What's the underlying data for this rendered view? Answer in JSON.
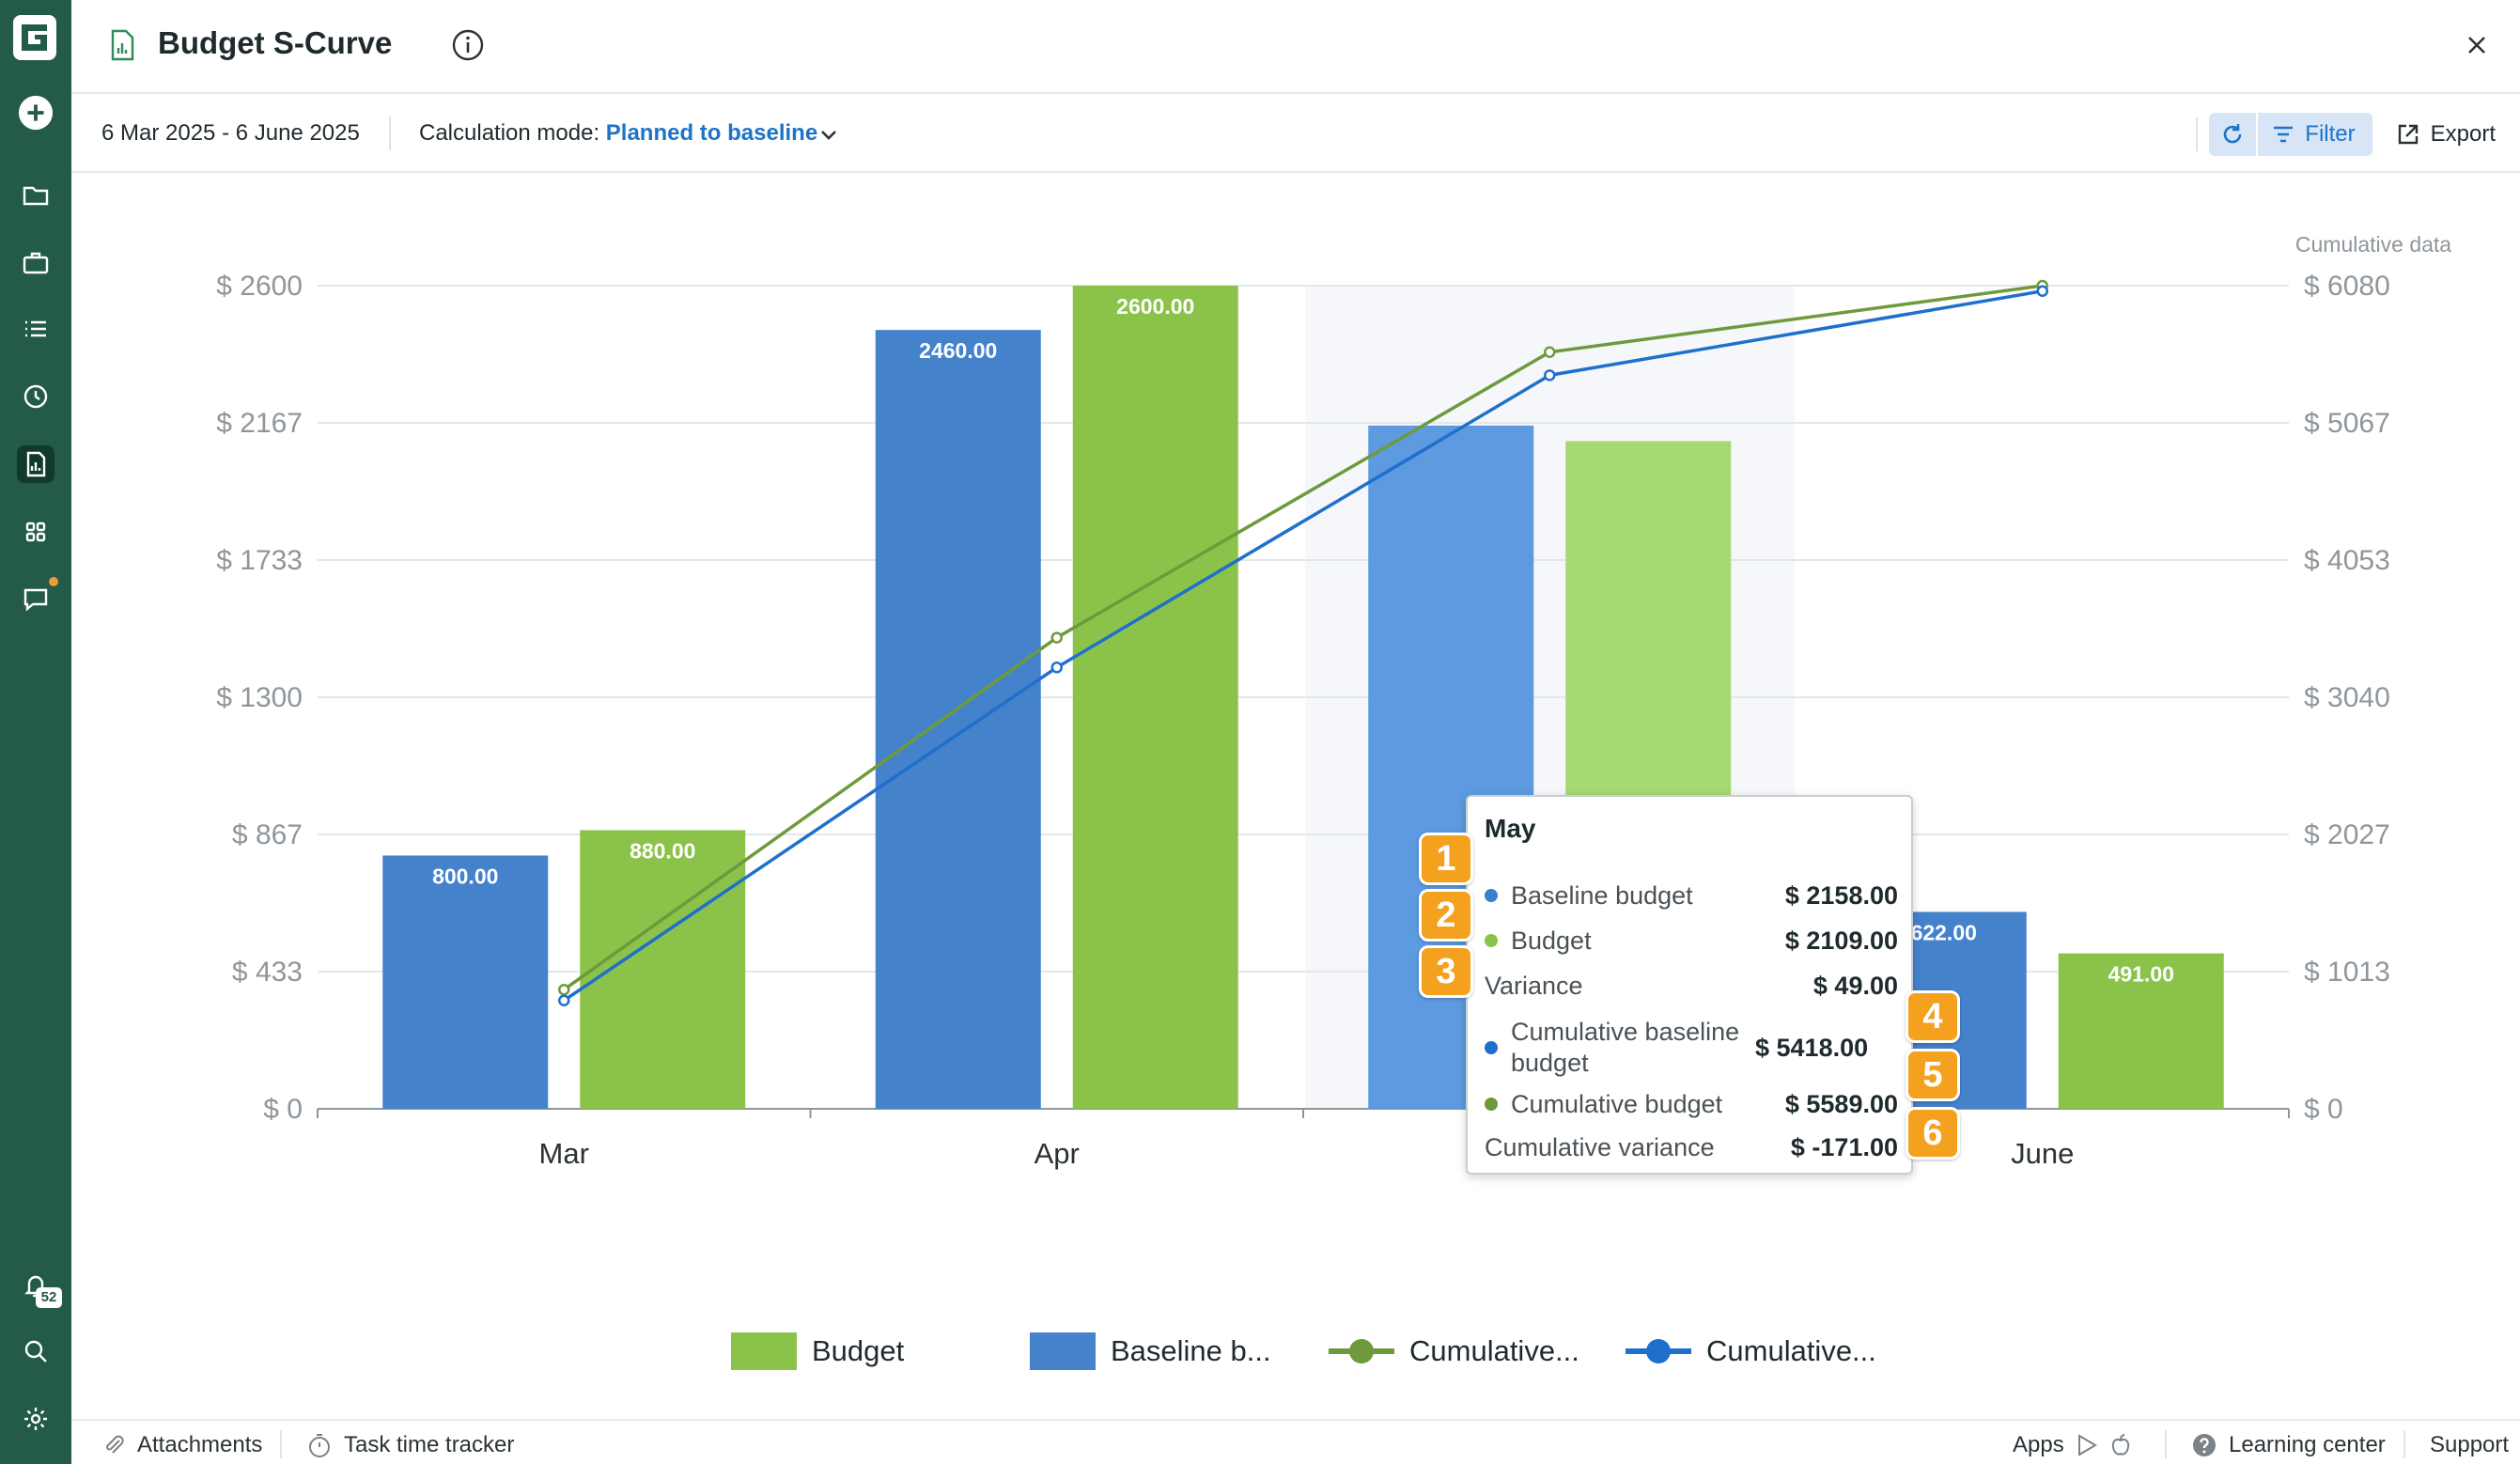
{
  "app": {
    "logo_letter": "G"
  },
  "rail": {
    "items": [
      "add-icon",
      "folder-icon",
      "briefcase-icon",
      "list-icon",
      "clock-icon",
      "report-icon",
      "apps-grid-icon",
      "chat-icon"
    ],
    "active": "report-icon",
    "notifications_count": "52"
  },
  "header": {
    "title": "Budget S-Curve"
  },
  "toolbar": {
    "date_range": "6 Mar 2025 - 6 June 2025",
    "calc_label": "Calculation mode: ",
    "calc_value": "Planned to baseline",
    "filter_label": "Filter",
    "export_label": "Export"
  },
  "chart_data": {
    "type": "bar",
    "categories": [
      "Mar",
      "Apr",
      "May",
      "June"
    ],
    "highlighted_category": "May",
    "y_left": {
      "ticks": [
        "$ 0",
        "$ 433",
        "$ 867",
        "$ 1300",
        "$ 1733",
        "$ 2167",
        "$ 2600"
      ],
      "range": [
        0,
        2600
      ]
    },
    "y_right": {
      "title": "Cumulative data",
      "ticks": [
        "$ 0",
        "$ 1013",
        "$ 2027",
        "$ 3040",
        "$ 4053",
        "$ 5067",
        "$ 6080"
      ],
      "range": [
        0,
        6080
      ]
    },
    "bar_series": [
      {
        "name": "Baseline b...",
        "color": "#4482cc",
        "values": [
          800,
          2460,
          2158,
          622
        ],
        "labels": [
          "800.00",
          "2460.00",
          "",
          "622.00"
        ]
      },
      {
        "name": "Budget",
        "color": "#8bc34a",
        "values": [
          880,
          2600,
          2109,
          491
        ],
        "labels": [
          "880.00",
          "2600.00",
          "",
          "491.00"
        ]
      }
    ],
    "line_series": [
      {
        "name": "Cumulative...",
        "color": "#6e9a3c",
        "axis": "right",
        "values": [
          880,
          3480,
          5589,
          6080
        ]
      },
      {
        "name": "Cumulative...",
        "color": "#1f6fcc",
        "axis": "right",
        "values": [
          800,
          3260,
          5418,
          6040
        ]
      }
    ],
    "legend": [
      "Budget",
      "Baseline b...",
      "Cumulative...",
      "Cumulative..."
    ],
    "legend_position": "bottom",
    "grid": true
  },
  "tooltip": {
    "title": "May",
    "rows": [
      {
        "label": "Baseline budget",
        "value": "$ 2158.00",
        "badge": "1",
        "dot": "#3a7fd0"
      },
      {
        "label": "Budget",
        "value": "$ 2109.00",
        "badge": "2",
        "dot": "#8bc34a"
      },
      {
        "label": "Variance",
        "value": "$ 49.00",
        "badge": "3",
        "dot": ""
      },
      {
        "label": "Cumulative baseline budget",
        "value": "$ 5418.00",
        "badge": "4",
        "dot": "#1f6fcc"
      },
      {
        "label": "Cumulative budget",
        "value": "$ 5589.00",
        "badge": "5",
        "dot": "#6e9a3c"
      },
      {
        "label": "Cumulative variance",
        "value": "$ -171.00",
        "badge": "6",
        "dot": ""
      }
    ]
  },
  "footer": {
    "attachments": "Attachments",
    "task_time_tracker": "Task time tracker",
    "apps": "Apps",
    "learning_center": "Learning center",
    "support": "Support"
  }
}
